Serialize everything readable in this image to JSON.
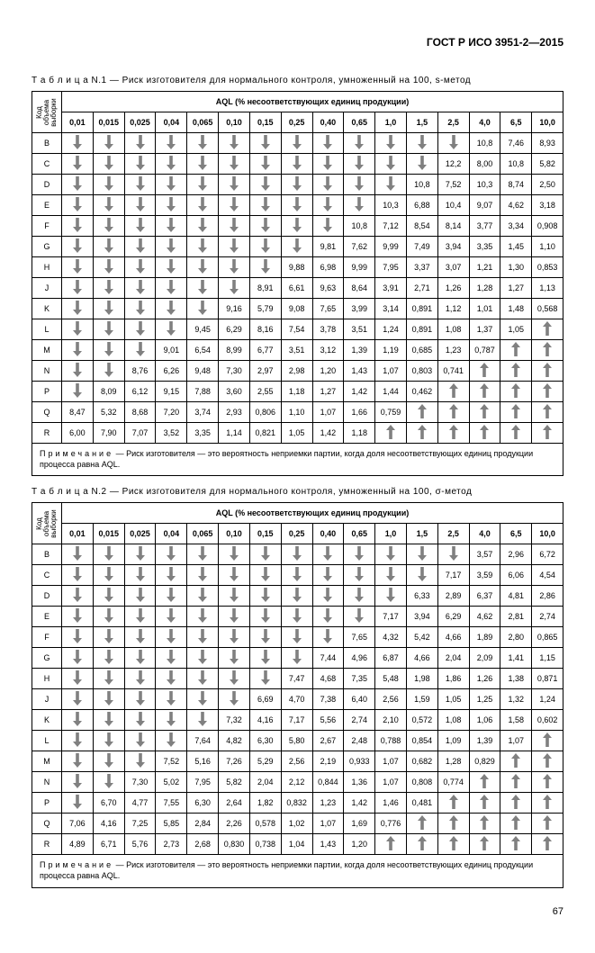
{
  "doc_number": "ГОСТ Р ИСО 3951-2—2015",
  "page_number": "67",
  "note_label": "Примечание",
  "note_text": " — Риск изготовителя — это вероятность неприемки партии, когда доля несоответствующих единиц продукции процесса равна AQL.",
  "rowhead1": "Код",
  "rowhead2": "объема",
  "rowhead3": "выборки",
  "aql_header": "AQL (% несоответствующих единиц продукции)",
  "aql_cols": [
    "0,01",
    "0,015",
    "0,025",
    "0,04",
    "0,065",
    "0,10",
    "0,15",
    "0,25",
    "0,40",
    "0,65",
    "1,0",
    "1,5",
    "2,5",
    "4,0",
    "6,5",
    "10,0"
  ],
  "row_codes": [
    "B",
    "C",
    "D",
    "E",
    "F",
    "G",
    "H",
    "J",
    "K",
    "L",
    "M",
    "N",
    "P",
    "Q",
    "R"
  ],
  "tables": [
    {
      "caption": "Т а б л и ц а  N.1 — Риск изготовителя для нормального контроля, умноженный на 100, s-метод",
      "rows": [
        [
          "D",
          "D",
          "D",
          "D",
          "D",
          "D",
          "D",
          "D",
          "D",
          "D",
          "D",
          "D",
          "D",
          "10,8",
          "7,46",
          "8,93"
        ],
        [
          "D",
          "D",
          "D",
          "D",
          "D",
          "D",
          "D",
          "D",
          "D",
          "D",
          "D",
          "D",
          "12,2",
          "8,00",
          "10,8",
          "5,82"
        ],
        [
          "D",
          "D",
          "D",
          "D",
          "D",
          "D",
          "D",
          "D",
          "D",
          "D",
          "D",
          "10,8",
          "7,52",
          "10,3",
          "8,74",
          "2,50"
        ],
        [
          "D",
          "D",
          "D",
          "D",
          "D",
          "D",
          "D",
          "D",
          "D",
          "D",
          "10,3",
          "6,88",
          "10,4",
          "9,07",
          "4,62",
          "3,18"
        ],
        [
          "D",
          "D",
          "D",
          "D",
          "D",
          "D",
          "D",
          "D",
          "D",
          "10,8",
          "7,12",
          "8,54",
          "8,14",
          "3,77",
          "3,34",
          "0,908"
        ],
        [
          "D",
          "D",
          "D",
          "D",
          "D",
          "D",
          "D",
          "D",
          "9,81",
          "7,62",
          "9,99",
          "7,49",
          "3,94",
          "3,35",
          "1,45",
          "1,10"
        ],
        [
          "D",
          "D",
          "D",
          "D",
          "D",
          "D",
          "D",
          "9,88",
          "6,98",
          "9,99",
          "7,95",
          "3,37",
          "3,07",
          "1,21",
          "1,30",
          "0,853"
        ],
        [
          "D",
          "D",
          "D",
          "D",
          "D",
          "D",
          "8,91",
          "6,61",
          "9,63",
          "8,64",
          "3,91",
          "2,71",
          "1,26",
          "1,28",
          "1,27",
          "1,13"
        ],
        [
          "D",
          "D",
          "D",
          "D",
          "D",
          "9,16",
          "5,79",
          "9,08",
          "7,65",
          "3,99",
          "3,14",
          "0,891",
          "1,12",
          "1,01",
          "1,48",
          "0,568"
        ],
        [
          "D",
          "D",
          "D",
          "D",
          "9,45",
          "6,29",
          "8,16",
          "7,54",
          "3,78",
          "3,51",
          "1,24",
          "0,891",
          "1,08",
          "1,37",
          "1,05",
          "U"
        ],
        [
          "D",
          "D",
          "D",
          "9,01",
          "6,54",
          "8,99",
          "6,77",
          "3,51",
          "3,12",
          "1,39",
          "1,19",
          "0,685",
          "1,23",
          "0,787",
          "U",
          "U"
        ],
        [
          "D",
          "D",
          "8,76",
          "6,26",
          "9,48",
          "7,30",
          "2,97",
          "2,98",
          "1,20",
          "1,43",
          "1,07",
          "0,803",
          "0,741",
          "U",
          "U",
          "U"
        ],
        [
          "D",
          "8,09",
          "6,12",
          "9,15",
          "7,88",
          "3,60",
          "2,55",
          "1,18",
          "1,27",
          "1,42",
          "1,44",
          "0,462",
          "U",
          "U",
          "U",
          "U"
        ],
        [
          "8,47",
          "5,32",
          "8,68",
          "7,20",
          "3,74",
          "2,93",
          "0,806",
          "1,10",
          "1,07",
          "1,66",
          "0,759",
          "U",
          "U",
          "U",
          "U",
          "U"
        ],
        [
          "6,00",
          "7,90",
          "7,07",
          "3,52",
          "3,35",
          "1,14",
          "0,821",
          "1,05",
          "1,42",
          "1,18",
          "U",
          "U",
          "U",
          "U",
          "U",
          "U"
        ]
      ]
    },
    {
      "caption": "Т а б л и ц а  N.2 — Риск изготовителя для нормального контроля, умноженный на 100, σ-метод",
      "rows": [
        [
          "D",
          "D",
          "D",
          "D",
          "D",
          "D",
          "D",
          "D",
          "D",
          "D",
          "D",
          "D",
          "D",
          "3,57",
          "2,96",
          "6,72"
        ],
        [
          "D",
          "D",
          "D",
          "D",
          "D",
          "D",
          "D",
          "D",
          "D",
          "D",
          "D",
          "D",
          "7,17",
          "3,59",
          "6,06",
          "4,54"
        ],
        [
          "D",
          "D",
          "D",
          "D",
          "D",
          "D",
          "D",
          "D",
          "D",
          "D",
          "D",
          "6,33",
          "2,89",
          "6,37",
          "4,81",
          "2,86"
        ],
        [
          "D",
          "D",
          "D",
          "D",
          "D",
          "D",
          "D",
          "D",
          "D",
          "D",
          "7,17",
          "3,94",
          "6,29",
          "4,62",
          "2,81",
          "2,74"
        ],
        [
          "D",
          "D",
          "D",
          "D",
          "D",
          "D",
          "D",
          "D",
          "D",
          "7,65",
          "4,32",
          "5,42",
          "4,66",
          "1,89",
          "2,80",
          "0,865"
        ],
        [
          "D",
          "D",
          "D",
          "D",
          "D",
          "D",
          "D",
          "D",
          "7,44",
          "4,96",
          "6,87",
          "4,66",
          "2,04",
          "2,09",
          "1,41",
          "1,15"
        ],
        [
          "D",
          "D",
          "D",
          "D",
          "D",
          "D",
          "D",
          "7,47",
          "4,68",
          "7,35",
          "5,48",
          "1,98",
          "1,86",
          "1,26",
          "1,38",
          "0,871"
        ],
        [
          "D",
          "D",
          "D",
          "D",
          "D",
          "D",
          "6,69",
          "4,70",
          "7,38",
          "6,40",
          "2,56",
          "1,59",
          "1,05",
          "1,25",
          "1,32",
          "1,24"
        ],
        [
          "D",
          "D",
          "D",
          "D",
          "D",
          "7,32",
          "4,16",
          "7,17",
          "5,56",
          "2,74",
          "2,10",
          "0,572",
          "1,08",
          "1,06",
          "1,58",
          "0,602"
        ],
        [
          "D",
          "D",
          "D",
          "D",
          "7,64",
          "4,82",
          "6,30",
          "5,80",
          "2,67",
          "2,48",
          "0,788",
          "0,854",
          "1,09",
          "1,39",
          "1,07",
          "U"
        ],
        [
          "D",
          "D",
          "D",
          "7,52",
          "5,16",
          "7,26",
          "5,29",
          "2,56",
          "2,19",
          "0,933",
          "1,07",
          "0,682",
          "1,28",
          "0,829",
          "U",
          "U"
        ],
        [
          "D",
          "D",
          "7,30",
          "5,02",
          "7,95",
          "5,82",
          "2,04",
          "2,12",
          "0,844",
          "1,36",
          "1,07",
          "0,808",
          "0,774",
          "U",
          "U",
          "U"
        ],
        [
          "D",
          "6,70",
          "4,77",
          "7,55",
          "6,30",
          "2,64",
          "1,82",
          "0,832",
          "1,23",
          "1,42",
          "1,46",
          "0,481",
          "U",
          "U",
          "U",
          "U"
        ],
        [
          "7,06",
          "4,16",
          "7,25",
          "5,85",
          "2,84",
          "2,26",
          "0,578",
          "1,02",
          "1,07",
          "1,69",
          "0,776",
          "U",
          "U",
          "U",
          "U",
          "U"
        ],
        [
          "4,89",
          "6,71",
          "5,76",
          "2,73",
          "2,68",
          "0,830",
          "0,738",
          "1,04",
          "1,43",
          "1,20",
          "U",
          "U",
          "U",
          "U",
          "U",
          "U"
        ]
      ]
    }
  ]
}
